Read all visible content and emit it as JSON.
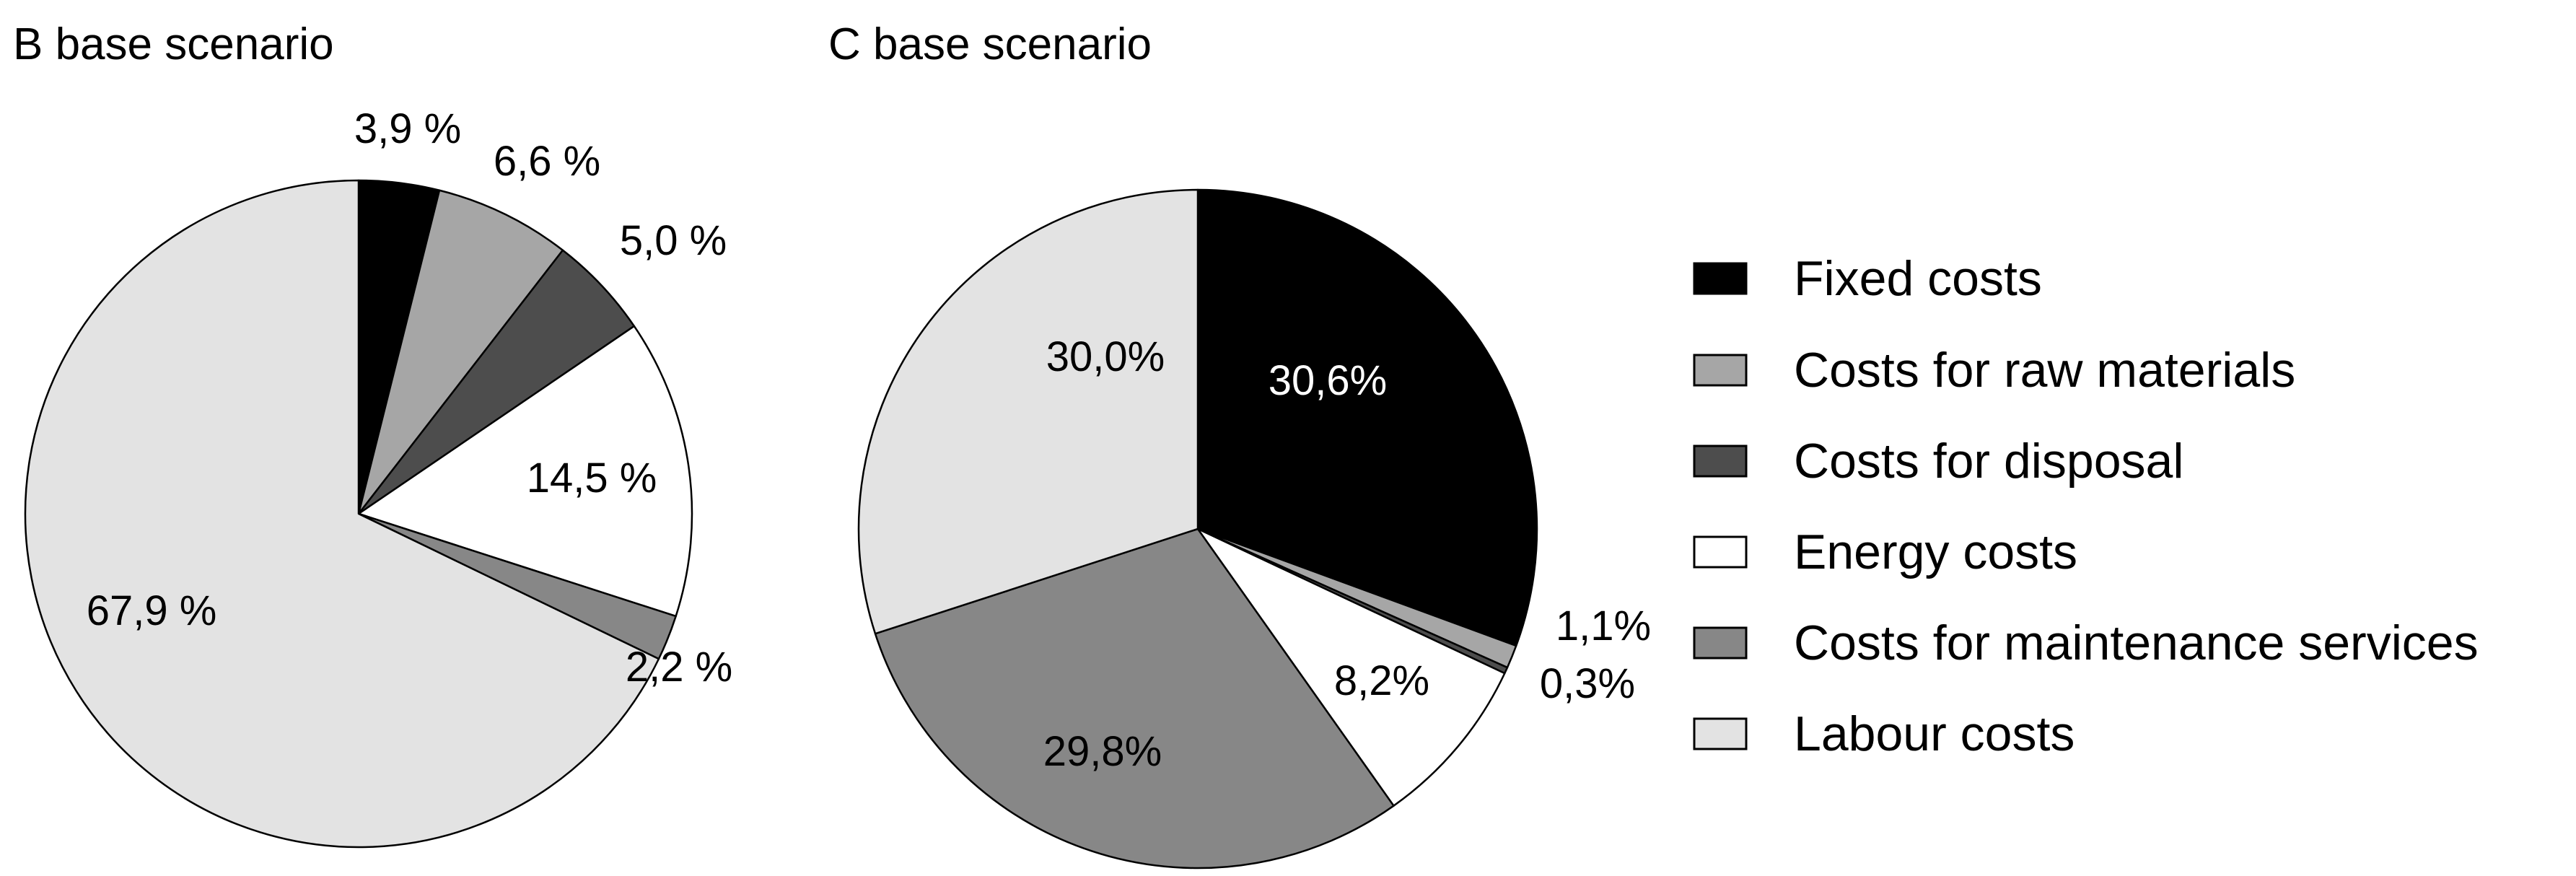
{
  "legend": {
    "items": [
      {
        "label": "Fixed costs",
        "color": "#000000"
      },
      {
        "label": "Costs for raw materials",
        "color": "#a6a6a6"
      },
      {
        "label": "Costs for disposal",
        "color": "#4d4d4d"
      },
      {
        "label": "Energy costs",
        "color": "#ffffff"
      },
      {
        "label": "Costs for maintenance services",
        "color": "#878787"
      },
      {
        "label": "Labour costs",
        "color": "#e3e3e3"
      }
    ]
  },
  "chart_data": [
    {
      "type": "pie",
      "title": "B base scenario",
      "categories": [
        "Fixed costs",
        "Costs for raw materials",
        "Costs for disposal",
        "Energy costs",
        "Costs for maintenance services",
        "Labour costs"
      ],
      "values": [
        3.9,
        6.6,
        5.0,
        14.5,
        2.2,
        67.9
      ],
      "labels": [
        "3,9 %",
        "6,6 %",
        "5,0 %",
        "14,5 %",
        "2,2 %",
        "67,9 %"
      ],
      "start_angle_deg": 0,
      "direction": "clockwise"
    },
    {
      "type": "pie",
      "title": "C base scenario",
      "categories": [
        "Fixed costs",
        "Costs for raw materials",
        "Costs for disposal",
        "Energy costs",
        "Costs for maintenance services",
        "Labour costs"
      ],
      "values": [
        30.6,
        1.1,
        0.3,
        8.2,
        29.8,
        30.0
      ],
      "labels": [
        "30,6%",
        "1,1%",
        "0,3%",
        "8,2%",
        "29,8%",
        "30,0%"
      ],
      "start_angle_deg": 0,
      "direction": "clockwise"
    }
  ]
}
